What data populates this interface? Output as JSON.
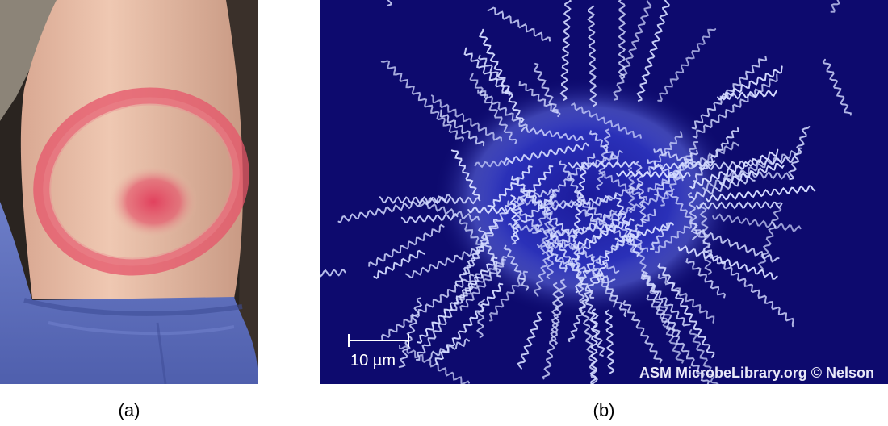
{
  "panels": [
    {
      "caption": "(a)",
      "description_icon": "erythema-migrans-rash-photo"
    },
    {
      "caption": "(b)",
      "description_icon": "spirochete-micrograph",
      "scale_bar_label": "10 µm",
      "credit": "ASM MicrobeLibrary.org © Nelson"
    }
  ],
  "colors": {
    "skin": "#e9bfa8",
    "rash": "#e2566a",
    "sleeve": "#5e6fc0",
    "micrograph_bg": "#0d0a6e",
    "spirochete": "#cfd6ff"
  }
}
